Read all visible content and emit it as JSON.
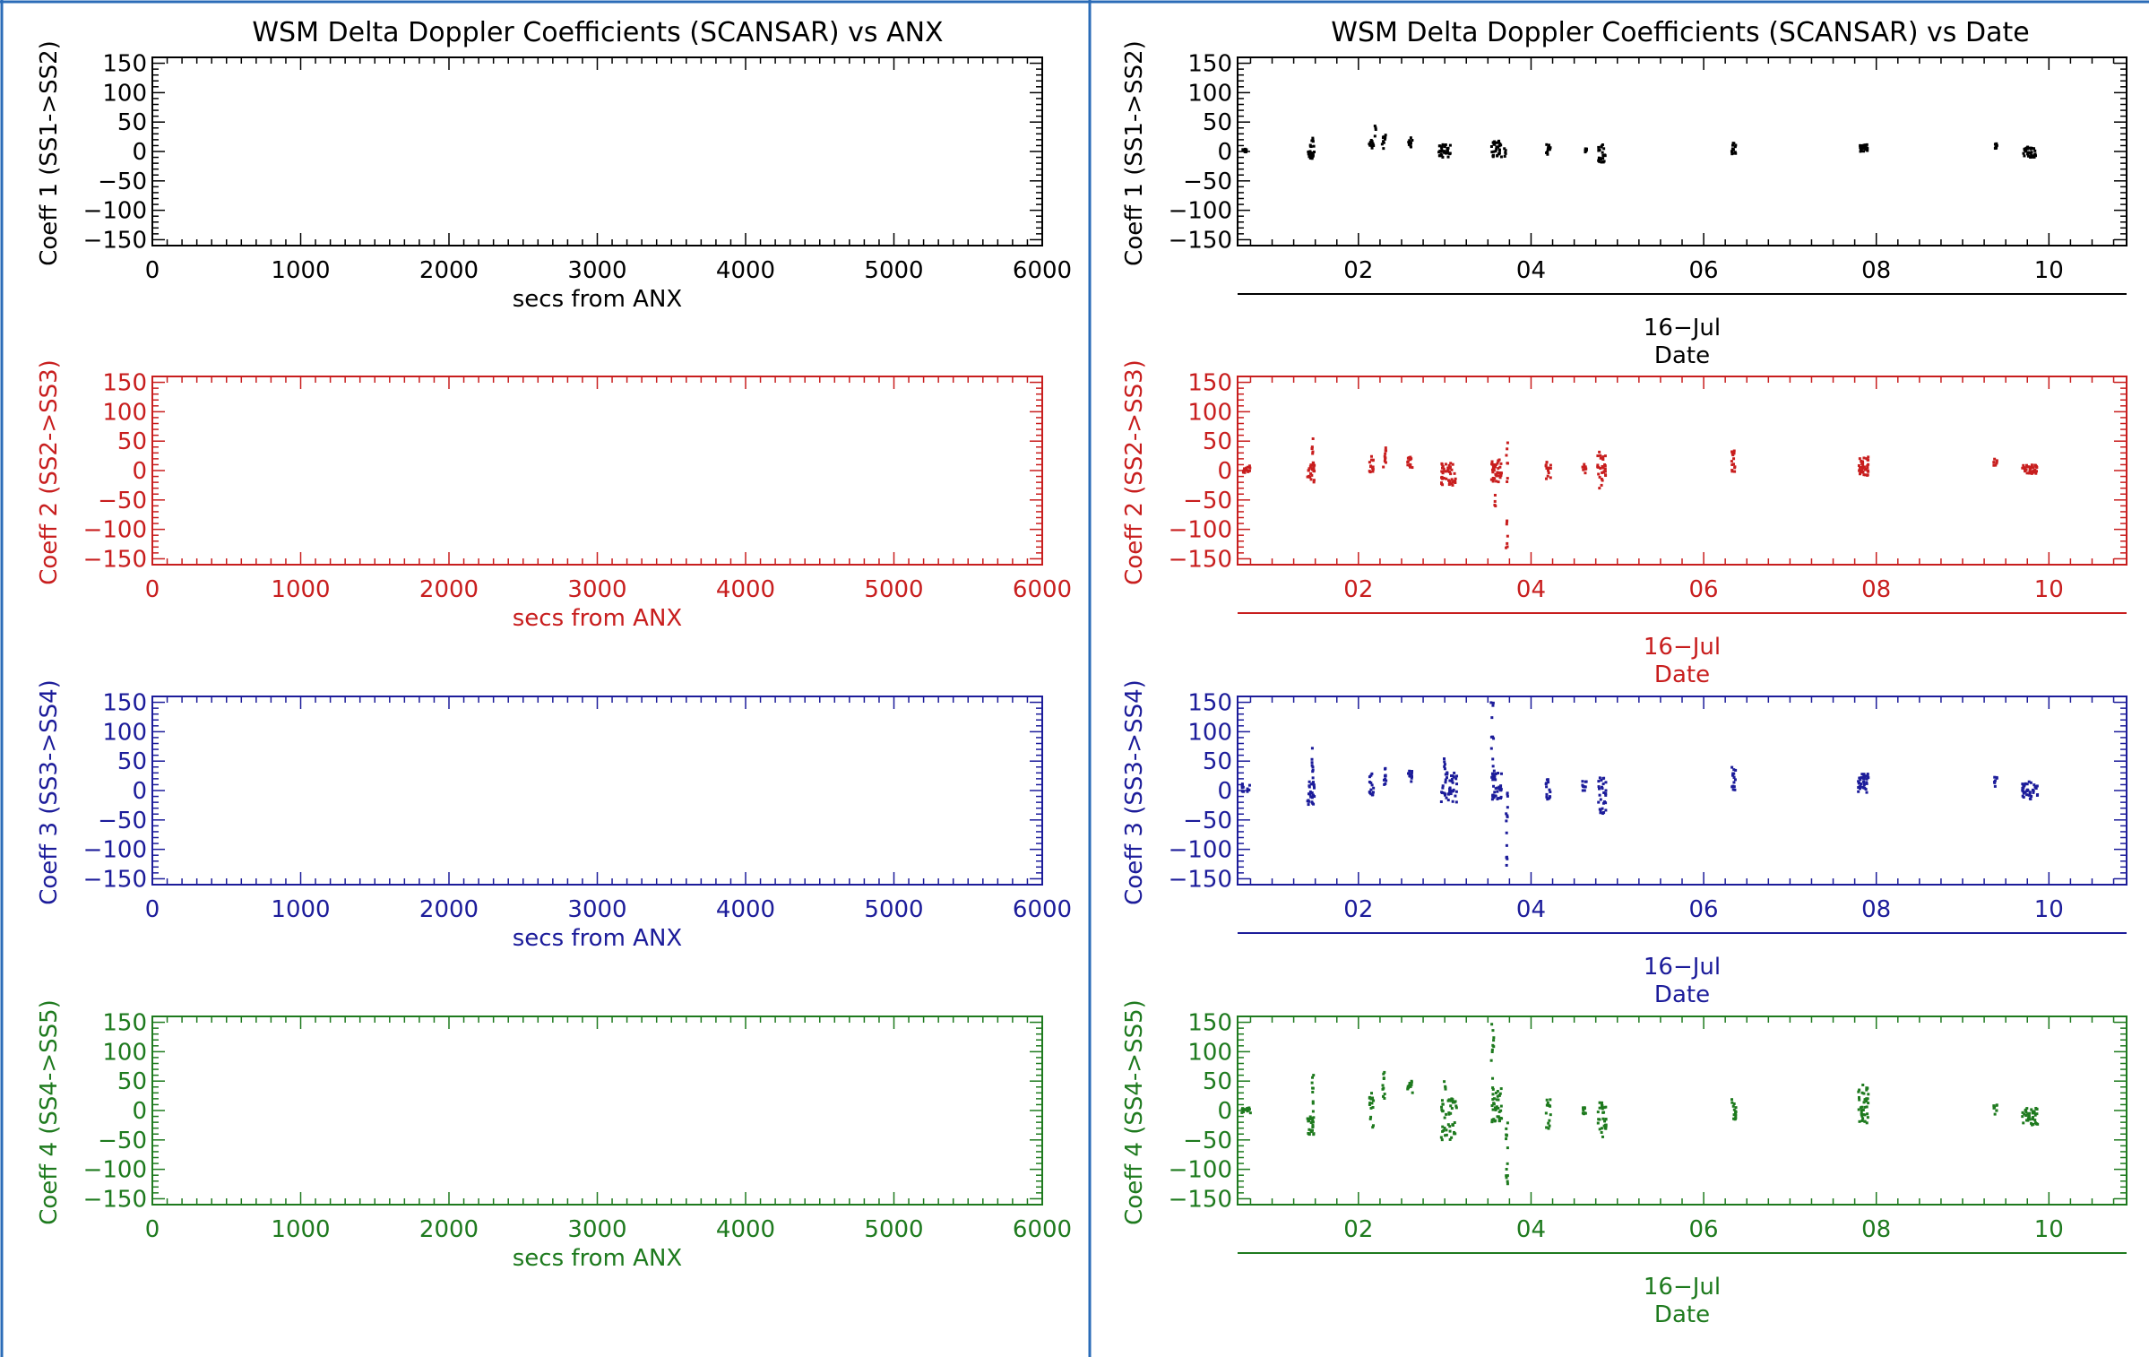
{
  "left_title": "WSM Delta Doppler Coefficients (SCANSAR) vs ANX",
  "right_title": "WSM Delta Doppler Coefficients (SCANSAR) vs Date",
  "colors": {
    "coeff1": "#000000",
    "coeff2": "#c81e1e",
    "coeff3": "#1c1c9a",
    "coeff4": "#1e7a1e",
    "divider": "#2b6cb8"
  },
  "chart_data": [
    {
      "type": "scatter",
      "panel": "left-1",
      "ylabel": "Coeff 1 (SS1->SS2)",
      "xlabel": "secs from ANX",
      "xlim": [
        0,
        6000
      ],
      "ylim": [
        -160,
        160
      ],
      "x_ticks": [
        0,
        1000,
        2000,
        3000,
        4000,
        5000,
        6000
      ],
      "x_tick_labels": [
        "0",
        "1000",
        "2000",
        "3000",
        "4000",
        "5000",
        "6000"
      ],
      "y_ticks": [
        150,
        100,
        50,
        0,
        -50,
        -100,
        -150
      ],
      "y_tick_labels": [
        "150",
        "100",
        "50",
        "0",
        "−50",
        "−100",
        "−150"
      ],
      "color": "#000000",
      "points": []
    },
    {
      "type": "scatter",
      "panel": "left-2",
      "ylabel": "Coeff 2 (SS2->SS3)",
      "xlabel": "secs from ANX",
      "xlim": [
        0,
        6000
      ],
      "ylim": [
        -160,
        160
      ],
      "x_ticks": [
        0,
        1000,
        2000,
        3000,
        4000,
        5000,
        6000
      ],
      "x_tick_labels": [
        "0",
        "1000",
        "2000",
        "3000",
        "4000",
        "5000",
        "6000"
      ],
      "y_ticks": [
        150,
        100,
        50,
        0,
        -50,
        -100,
        -150
      ],
      "y_tick_labels": [
        "150",
        "100",
        "50",
        "0",
        "−50",
        "−100",
        "−150"
      ],
      "color": "#c81e1e",
      "points": []
    },
    {
      "type": "scatter",
      "panel": "left-3",
      "ylabel": "Coeff 3 (SS3->SS4)",
      "xlabel": "secs from ANX",
      "xlim": [
        0,
        6000
      ],
      "ylim": [
        -160,
        160
      ],
      "x_ticks": [
        0,
        1000,
        2000,
        3000,
        4000,
        5000,
        6000
      ],
      "x_tick_labels": [
        "0",
        "1000",
        "2000",
        "3000",
        "4000",
        "5000",
        "6000"
      ],
      "y_ticks": [
        150,
        100,
        50,
        0,
        -50,
        -100,
        -150
      ],
      "y_tick_labels": [
        "150",
        "100",
        "50",
        "0",
        "−50",
        "−100",
        "−150"
      ],
      "color": "#1c1c9a",
      "points": []
    },
    {
      "type": "scatter",
      "panel": "left-4",
      "ylabel": "Coeff 4 (SS4->SS5)",
      "xlabel": "secs from ANX",
      "xlim": [
        0,
        6000
      ],
      "ylim": [
        -160,
        160
      ],
      "x_ticks": [
        0,
        1000,
        2000,
        3000,
        4000,
        5000,
        6000
      ],
      "x_tick_labels": [
        "0",
        "1000",
        "2000",
        "3000",
        "4000",
        "5000",
        "6000"
      ],
      "y_ticks": [
        150,
        100,
        50,
        0,
        -50,
        -100,
        -150
      ],
      "y_tick_labels": [
        "150",
        "100",
        "50",
        "0",
        "−50",
        "−100",
        "−150"
      ],
      "color": "#1e7a1e",
      "points": []
    },
    {
      "type": "scatter",
      "panel": "right-1",
      "ylabel": "Coeff 1 (SS1->SS2)",
      "xlabel": "Date",
      "xlabel_sub": "16−Jul",
      "xlim": [
        0.6,
        10.9
      ],
      "ylim": [
        -160,
        160
      ],
      "x_ticks": [
        2,
        4,
        6,
        8,
        10
      ],
      "x_tick_labels": [
        "02",
        "04",
        "06",
        "08",
        "10"
      ],
      "y_ticks": [
        150,
        100,
        50,
        0,
        -50,
        -100,
        -150
      ],
      "y_tick_labels": [
        "150",
        "100",
        "50",
        "0",
        "−50",
        "−100",
        "−150"
      ],
      "color": "#000000",
      "clusters": [
        {
          "x": 0.68,
          "w": 0.06,
          "lo": -2,
          "hi": 4,
          "n": 10
        },
        {
          "x": 1.45,
          "w": 0.08,
          "lo": -12,
          "hi": 12,
          "n": 24
        },
        {
          "x": 1.47,
          "w": 0.02,
          "lo": 10,
          "hi": 25,
          "n": 4
        },
        {
          "x": 2.15,
          "w": 0.05,
          "lo": 0,
          "hi": 20,
          "n": 12
        },
        {
          "x": 2.2,
          "w": 0.02,
          "lo": 20,
          "hi": 45,
          "n": 4
        },
        {
          "x": 2.3,
          "w": 0.05,
          "lo": 5,
          "hi": 28,
          "n": 10
        },
        {
          "x": 2.6,
          "w": 0.05,
          "lo": 5,
          "hi": 25,
          "n": 10
        },
        {
          "x": 3.0,
          "w": 0.15,
          "lo": -10,
          "hi": 12,
          "n": 34
        },
        {
          "x": 3.6,
          "w": 0.12,
          "lo": -10,
          "hi": 18,
          "n": 34
        },
        {
          "x": 3.7,
          "w": 0.02,
          "lo": -10,
          "hi": 5,
          "n": 5
        },
        {
          "x": 4.2,
          "w": 0.05,
          "lo": -5,
          "hi": 12,
          "n": 12
        },
        {
          "x": 4.62,
          "w": 0.05,
          "lo": -2,
          "hi": 6,
          "n": 8
        },
        {
          "x": 4.82,
          "w": 0.08,
          "lo": -20,
          "hi": 12,
          "n": 24
        },
        {
          "x": 6.35,
          "w": 0.05,
          "lo": -5,
          "hi": 15,
          "n": 14
        },
        {
          "x": 7.85,
          "w": 0.1,
          "lo": 0,
          "hi": 12,
          "n": 30
        },
        {
          "x": 9.38,
          "w": 0.04,
          "lo": 5,
          "hi": 15,
          "n": 8
        },
        {
          "x": 9.78,
          "w": 0.15,
          "lo": -10,
          "hi": 8,
          "n": 34
        }
      ]
    },
    {
      "type": "scatter",
      "panel": "right-2",
      "ylabel": "Coeff 2 (SS2->SS3)",
      "xlabel": "Date",
      "xlabel_sub": "16−Jul",
      "xlim": [
        0.6,
        10.9
      ],
      "ylim": [
        -160,
        160
      ],
      "x_ticks": [
        2,
        4,
        6,
        8,
        10
      ],
      "x_tick_labels": [
        "02",
        "04",
        "06",
        "08",
        "10"
      ],
      "y_ticks": [
        150,
        100,
        50,
        0,
        -50,
        -100,
        -150
      ],
      "y_tick_labels": [
        "150",
        "100",
        "50",
        "0",
        "−50",
        "−100",
        "−150"
      ],
      "color": "#c81e1e",
      "clusters": [
        {
          "x": 0.7,
          "w": 0.1,
          "lo": -5,
          "hi": 8,
          "n": 14
        },
        {
          "x": 1.45,
          "w": 0.08,
          "lo": -20,
          "hi": 10,
          "n": 24
        },
        {
          "x": 1.47,
          "w": 0.02,
          "lo": 10,
          "hi": 62,
          "n": 8
        },
        {
          "x": 2.15,
          "w": 0.05,
          "lo": -5,
          "hi": 25,
          "n": 14
        },
        {
          "x": 2.3,
          "w": 0.04,
          "lo": 5,
          "hi": 45,
          "n": 10
        },
        {
          "x": 2.6,
          "w": 0.06,
          "lo": 5,
          "hi": 25,
          "n": 14
        },
        {
          "x": 3.05,
          "w": 0.18,
          "lo": -25,
          "hi": 15,
          "n": 44
        },
        {
          "x": 3.6,
          "w": 0.12,
          "lo": -20,
          "hi": 20,
          "n": 40
        },
        {
          "x": 3.72,
          "w": 0.02,
          "lo": -140,
          "hi": 55,
          "n": 14
        },
        {
          "x": 3.58,
          "w": 0.02,
          "lo": -70,
          "hi": -40,
          "n": 4
        },
        {
          "x": 4.2,
          "w": 0.06,
          "lo": -15,
          "hi": 15,
          "n": 14
        },
        {
          "x": 4.62,
          "w": 0.05,
          "lo": -5,
          "hi": 12,
          "n": 10
        },
        {
          "x": 4.82,
          "w": 0.1,
          "lo": -30,
          "hi": 35,
          "n": 30
        },
        {
          "x": 6.35,
          "w": 0.05,
          "lo": -5,
          "hi": 35,
          "n": 16
        },
        {
          "x": 7.85,
          "w": 0.12,
          "lo": -10,
          "hi": 25,
          "n": 36
        },
        {
          "x": 9.38,
          "w": 0.04,
          "lo": 8,
          "hi": 20,
          "n": 8
        },
        {
          "x": 9.78,
          "w": 0.18,
          "lo": -5,
          "hi": 10,
          "n": 40
        }
      ]
    },
    {
      "type": "scatter",
      "panel": "right-3",
      "ylabel": "Coeff 3 (SS3->SS4)",
      "xlabel": "Date",
      "xlabel_sub": "16−Jul",
      "xlim": [
        0.6,
        10.9
      ],
      "ylim": [
        -160,
        160
      ],
      "x_ticks": [
        2,
        4,
        6,
        8,
        10
      ],
      "x_tick_labels": [
        "02",
        "04",
        "06",
        "08",
        "10"
      ],
      "y_ticks": [
        150,
        100,
        50,
        0,
        -50,
        -100,
        -150
      ],
      "y_tick_labels": [
        "150",
        "100",
        "50",
        "0",
        "−50",
        "−100",
        "−150"
      ],
      "color": "#1c1c9a",
      "clusters": [
        {
          "x": 0.7,
          "w": 0.1,
          "lo": -2,
          "hi": 12,
          "n": 14
        },
        {
          "x": 1.45,
          "w": 0.08,
          "lo": -25,
          "hi": 15,
          "n": 26
        },
        {
          "x": 1.47,
          "w": 0.02,
          "lo": 15,
          "hi": 75,
          "n": 8
        },
        {
          "x": 2.15,
          "w": 0.05,
          "lo": -10,
          "hi": 30,
          "n": 14
        },
        {
          "x": 2.3,
          "w": 0.04,
          "lo": 10,
          "hi": 50,
          "n": 10
        },
        {
          "x": 2.6,
          "w": 0.06,
          "lo": 15,
          "hi": 35,
          "n": 14
        },
        {
          "x": 3.05,
          "w": 0.18,
          "lo": -20,
          "hi": 35,
          "n": 44
        },
        {
          "x": 3.0,
          "w": 0.02,
          "lo": 35,
          "hi": 60,
          "n": 5
        },
        {
          "x": 3.6,
          "w": 0.12,
          "lo": -15,
          "hi": 35,
          "n": 40
        },
        {
          "x": 3.55,
          "w": 0.04,
          "lo": 40,
          "hi": 150,
          "n": 10
        },
        {
          "x": 3.72,
          "w": 0.02,
          "lo": -130,
          "hi": 0,
          "n": 14
        },
        {
          "x": 4.2,
          "w": 0.06,
          "lo": -15,
          "hi": 20,
          "n": 14
        },
        {
          "x": 4.62,
          "w": 0.05,
          "lo": 0,
          "hi": 18,
          "n": 10
        },
        {
          "x": 4.82,
          "w": 0.1,
          "lo": -40,
          "hi": 25,
          "n": 30
        },
        {
          "x": 6.35,
          "w": 0.05,
          "lo": 0,
          "hi": 40,
          "n": 16
        },
        {
          "x": 7.85,
          "w": 0.12,
          "lo": -5,
          "hi": 30,
          "n": 36
        },
        {
          "x": 9.38,
          "w": 0.04,
          "lo": 5,
          "hi": 25,
          "n": 8
        },
        {
          "x": 9.78,
          "w": 0.18,
          "lo": -15,
          "hi": 15,
          "n": 40
        }
      ]
    },
    {
      "type": "scatter",
      "panel": "right-4",
      "ylabel": "Coeff 4 (SS4->SS5)",
      "xlabel": "Date",
      "xlabel_sub": "16−Jul",
      "xlim": [
        0.6,
        10.9
      ],
      "ylim": [
        -160,
        160
      ],
      "x_ticks": [
        2,
        4,
        6,
        8,
        10
      ],
      "x_tick_labels": [
        "02",
        "04",
        "06",
        "08",
        "10"
      ],
      "y_ticks": [
        150,
        100,
        50,
        0,
        -50,
        -100,
        -150
      ],
      "y_tick_labels": [
        "150",
        "100",
        "50",
        "0",
        "−50",
        "−100",
        "−150"
      ],
      "color": "#1e7a1e",
      "clusters": [
        {
          "x": 0.7,
          "w": 0.1,
          "lo": -5,
          "hi": 5,
          "n": 14
        },
        {
          "x": 1.45,
          "w": 0.08,
          "lo": -45,
          "hi": 5,
          "n": 26
        },
        {
          "x": 1.47,
          "w": 0.02,
          "lo": 10,
          "hi": 70,
          "n": 8
        },
        {
          "x": 2.15,
          "w": 0.05,
          "lo": -30,
          "hi": 30,
          "n": 16
        },
        {
          "x": 2.3,
          "w": 0.04,
          "lo": 20,
          "hi": 65,
          "n": 10
        },
        {
          "x": 2.6,
          "w": 0.06,
          "lo": 25,
          "hi": 50,
          "n": 14
        },
        {
          "x": 3.05,
          "w": 0.18,
          "lo": -50,
          "hi": 20,
          "n": 46
        },
        {
          "x": 3.0,
          "w": 0.02,
          "lo": 30,
          "hi": 50,
          "n": 4
        },
        {
          "x": 3.6,
          "w": 0.12,
          "lo": -20,
          "hi": 40,
          "n": 40
        },
        {
          "x": 3.55,
          "w": 0.04,
          "lo": 50,
          "hi": 150,
          "n": 10
        },
        {
          "x": 3.72,
          "w": 0.02,
          "lo": -125,
          "hi": -20,
          "n": 14
        },
        {
          "x": 4.2,
          "w": 0.06,
          "lo": -35,
          "hi": 20,
          "n": 14
        },
        {
          "x": 4.62,
          "w": 0.05,
          "lo": -10,
          "hi": 5,
          "n": 10
        },
        {
          "x": 4.82,
          "w": 0.1,
          "lo": -45,
          "hi": 15,
          "n": 30
        },
        {
          "x": 6.35,
          "w": 0.05,
          "lo": -20,
          "hi": 25,
          "n": 16
        },
        {
          "x": 7.85,
          "w": 0.12,
          "lo": -25,
          "hi": 45,
          "n": 40
        },
        {
          "x": 9.38,
          "w": 0.04,
          "lo": -10,
          "hi": 10,
          "n": 8
        },
        {
          "x": 9.78,
          "w": 0.18,
          "lo": -25,
          "hi": 5,
          "n": 40
        }
      ]
    }
  ]
}
